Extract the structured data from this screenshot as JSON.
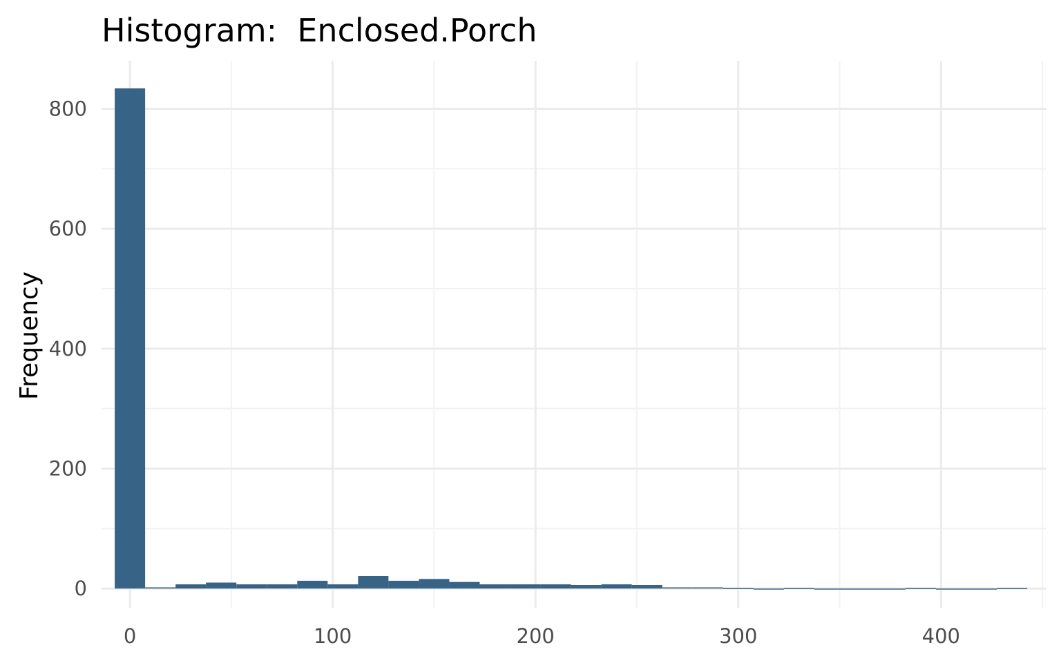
{
  "chart_data": {
    "type": "bar",
    "title": "Histogram:  Enclosed.Porch",
    "xlabel": "",
    "ylabel": "Frequency",
    "xlim": [
      -14,
      452
    ],
    "ylim": [
      -32,
      880
    ],
    "x_ticks": [
      0,
      100,
      200,
      300,
      400
    ],
    "x_tick_labels": [
      "0",
      "100",
      "200",
      "300",
      "400"
    ],
    "y_ticks": [
      0,
      200,
      400,
      600,
      800
    ],
    "y_tick_labels": [
      "0",
      "200",
      "400",
      "600",
      "800"
    ],
    "grid": true,
    "bin_width": 15,
    "bins": [
      {
        "x0": -7.5,
        "x1": 7.5,
        "count": 834
      },
      {
        "x0": 7.5,
        "x1": 22.5,
        "count": 2
      },
      {
        "x0": 22.5,
        "x1": 37.5,
        "count": 7
      },
      {
        "x0": 37.5,
        "x1": 52.5,
        "count": 10
      },
      {
        "x0": 52.5,
        "x1": 67.5,
        "count": 7
      },
      {
        "x0": 67.5,
        "x1": 82.5,
        "count": 7
      },
      {
        "x0": 82.5,
        "x1": 97.5,
        "count": 13
      },
      {
        "x0": 97.5,
        "x1": 112.5,
        "count": 7
      },
      {
        "x0": 112.5,
        "x1": 127.5,
        "count": 21
      },
      {
        "x0": 127.5,
        "x1": 142.5,
        "count": 13
      },
      {
        "x0": 142.5,
        "x1": 157.5,
        "count": 16
      },
      {
        "x0": 157.5,
        "x1": 172.5,
        "count": 11
      },
      {
        "x0": 172.5,
        "x1": 187.5,
        "count": 7
      },
      {
        "x0": 187.5,
        "x1": 202.5,
        "count": 7
      },
      {
        "x0": 202.5,
        "x1": 217.5,
        "count": 7
      },
      {
        "x0": 217.5,
        "x1": 232.5,
        "count": 6
      },
      {
        "x0": 232.5,
        "x1": 247.5,
        "count": 7
      },
      {
        "x0": 247.5,
        "x1": 262.5,
        "count": 6
      },
      {
        "x0": 262.5,
        "x1": 277.5,
        "count": 2
      },
      {
        "x0": 277.5,
        "x1": 292.5,
        "count": 2
      },
      {
        "x0": 292.5,
        "x1": 307.5,
        "count": 1
      },
      {
        "x0": 307.5,
        "x1": 322.5,
        "count": 0
      },
      {
        "x0": 322.5,
        "x1": 337.5,
        "count": 1
      },
      {
        "x0": 337.5,
        "x1": 352.5,
        "count": 0
      },
      {
        "x0": 352.5,
        "x1": 367.5,
        "count": 0
      },
      {
        "x0": 367.5,
        "x1": 382.5,
        "count": 0
      },
      {
        "x0": 382.5,
        "x1": 397.5,
        "count": 1
      },
      {
        "x0": 397.5,
        "x1": 412.5,
        "count": 0
      },
      {
        "x0": 412.5,
        "x1": 427.5,
        "count": 0
      },
      {
        "x0": 427.5,
        "x1": 442.5,
        "count": 1
      }
    ],
    "colors": {
      "bar": "#376387",
      "grid_major": "#ebebeb",
      "grid_minor": "#f2f2f2",
      "tick_text": "#4d4d4d",
      "title_text": "#000000"
    }
  }
}
